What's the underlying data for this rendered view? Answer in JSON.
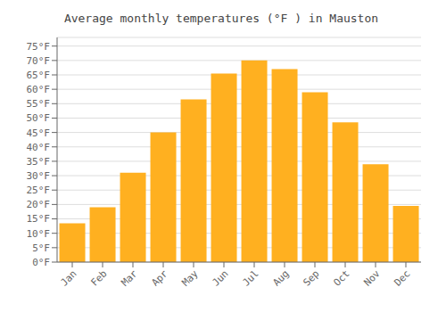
{
  "chart_data": {
    "type": "bar",
    "title": "Average monthly temperatures (°F ) in Mauston",
    "categories": [
      "Jan",
      "Feb",
      "Mar",
      "Apr",
      "May",
      "Jun",
      "Jul",
      "Aug",
      "Sep",
      "Oct",
      "Nov",
      "Dec"
    ],
    "values": [
      13.5,
      19.0,
      31.0,
      45.0,
      56.5,
      65.5,
      70.0,
      67.0,
      59.0,
      48.5,
      34.0,
      19.5
    ],
    "color": "#FFB020",
    "ylim": [
      0,
      78
    ],
    "yticks": [
      {
        "value": 0,
        "label": "0°F"
      },
      {
        "value": 5,
        "label": "5°F"
      },
      {
        "value": 10,
        "label": "10°F"
      },
      {
        "value": 15,
        "label": "15°F"
      },
      {
        "value": 20,
        "label": "20°F"
      },
      {
        "value": 25,
        "label": "25°F"
      },
      {
        "value": 30,
        "label": "30°F"
      },
      {
        "value": 35,
        "label": "35°F"
      },
      {
        "value": 40,
        "label": "40°F"
      },
      {
        "value": 45,
        "label": "45°F"
      },
      {
        "value": 50,
        "label": "50°F"
      },
      {
        "value": 55,
        "label": "55°F"
      },
      {
        "value": 60,
        "label": "60°F"
      },
      {
        "value": 65,
        "label": "65°F"
      },
      {
        "value": 70,
        "label": "70°F"
      },
      {
        "value": 75,
        "label": "75°F"
      }
    ],
    "grid": true
  }
}
